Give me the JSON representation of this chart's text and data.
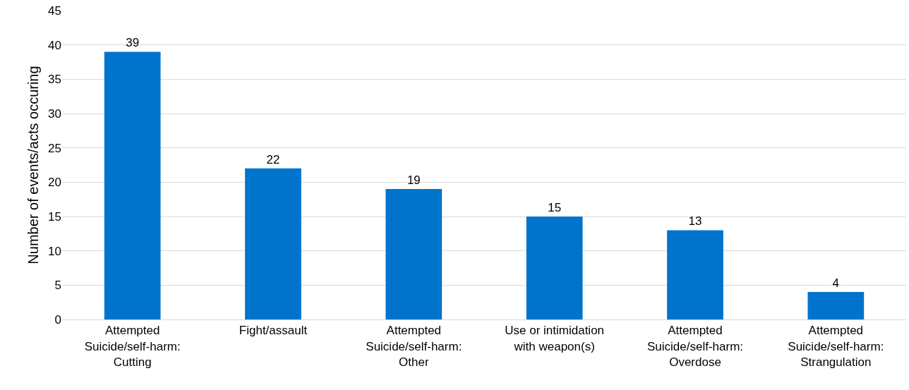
{
  "chart_data": {
    "type": "bar",
    "ylabel": "Number of events/acts occuring",
    "categories": [
      "Attempted\nSuicide/self-harm:\nCutting",
      "Fight/assault",
      "Attempted\nSuicide/self-harm:\nOther",
      "Use or intimidation\nwith weapon(s)",
      "Attempted\nSuicide/self-harm:\nOverdose",
      "Attempted\nSuicide/self-harm:\nStrangulation"
    ],
    "values": [
      39,
      22,
      19,
      15,
      13,
      4
    ],
    "color": "#0074cc",
    "ylim": [
      0,
      45
    ],
    "yticks": [
      0,
      5,
      10,
      15,
      20,
      25,
      30,
      35,
      40,
      45
    ],
    "grid": "y",
    "data_labels": true,
    "legend": false
  }
}
